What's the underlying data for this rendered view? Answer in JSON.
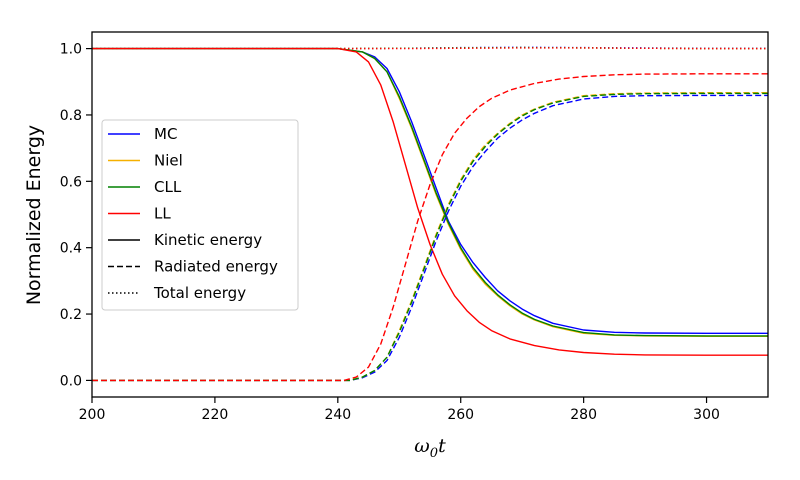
{
  "chart_data": {
    "type": "line",
    "title": "",
    "xlabel_symbol": "ω",
    "xlabel_subscript": "0",
    "xlabel_var": "t",
    "ylabel": "Normalized Energy",
    "xlim": [
      200,
      310
    ],
    "ylim": [
      -0.05,
      1.05
    ],
    "xticks": [
      200,
      220,
      240,
      260,
      280,
      300
    ],
    "yticks": [
      0.0,
      0.2,
      0.4,
      0.6,
      0.8,
      1.0
    ],
    "xtick_labels": [
      "200",
      "220",
      "240",
      "260",
      "280",
      "300"
    ],
    "ytick_labels": [
      "0.0",
      "0.2",
      "0.4",
      "0.6",
      "0.8",
      "1.0"
    ],
    "legend_position": "center-left",
    "grid": false,
    "models": [
      {
        "name": "MC",
        "color": "#0000ff"
      },
      {
        "name": "Niel",
        "color": "#f5b000"
      },
      {
        "name": "CLL",
        "color": "#008000"
      },
      {
        "name": "LL",
        "color": "#ff0000"
      }
    ],
    "line_styles": [
      {
        "name": "Kinetic energy",
        "dash": "solid"
      },
      {
        "name": "Radiated energy",
        "dash": "dashed"
      },
      {
        "name": "Total energy",
        "dash": "dotted"
      }
    ],
    "series": [
      {
        "model": "MC",
        "quantity": "Kinetic energy",
        "x": [
          200,
          240,
          244,
          246,
          248,
          250,
          252,
          254,
          256,
          258,
          260,
          262,
          264,
          266,
          268,
          270,
          272,
          275,
          280,
          285,
          290,
          300,
          310
        ],
        "y": [
          1.0,
          1.0,
          0.99,
          0.975,
          0.94,
          0.87,
          0.78,
          0.68,
          0.58,
          0.48,
          0.41,
          0.355,
          0.31,
          0.27,
          0.24,
          0.215,
          0.195,
          0.172,
          0.152,
          0.145,
          0.143,
          0.142,
          0.142
        ]
      },
      {
        "model": "Niel",
        "quantity": "Kinetic energy",
        "x": [
          200,
          240,
          244,
          246,
          248,
          250,
          252,
          254,
          256,
          258,
          260,
          262,
          264,
          266,
          268,
          270,
          272,
          275,
          280,
          285,
          290,
          300,
          310
        ],
        "y": [
          1.0,
          1.0,
          0.99,
          0.97,
          0.93,
          0.85,
          0.76,
          0.66,
          0.56,
          0.47,
          0.395,
          0.335,
          0.29,
          0.255,
          0.225,
          0.2,
          0.182,
          0.162,
          0.142,
          0.136,
          0.134,
          0.133,
          0.133
        ]
      },
      {
        "model": "CLL",
        "quantity": "Kinetic energy",
        "x": [
          200,
          240,
          244,
          246,
          248,
          250,
          252,
          254,
          256,
          258,
          260,
          262,
          264,
          266,
          268,
          270,
          272,
          275,
          280,
          285,
          290,
          300,
          310
        ],
        "y": [
          1.0,
          1.0,
          0.99,
          0.97,
          0.93,
          0.855,
          0.765,
          0.665,
          0.565,
          0.475,
          0.4,
          0.34,
          0.295,
          0.258,
          0.228,
          0.203,
          0.184,
          0.164,
          0.144,
          0.137,
          0.135,
          0.134,
          0.134
        ]
      },
      {
        "model": "LL",
        "quantity": "Kinetic energy",
        "x": [
          200,
          240,
          243,
          245,
          247,
          249,
          251,
          253,
          255,
          257,
          259,
          261,
          263,
          265,
          268,
          272,
          276,
          280,
          285,
          290,
          300,
          310
        ],
        "y": [
          1.0,
          1.0,
          0.99,
          0.96,
          0.89,
          0.78,
          0.65,
          0.52,
          0.41,
          0.32,
          0.255,
          0.21,
          0.175,
          0.15,
          0.125,
          0.105,
          0.092,
          0.084,
          0.079,
          0.077,
          0.076,
          0.076
        ]
      },
      {
        "model": "MC",
        "quantity": "Radiated energy",
        "x": [
          200,
          242,
          244,
          246,
          248,
          250,
          252,
          254,
          256,
          258,
          260,
          262,
          264,
          266,
          268,
          270,
          272,
          275,
          280,
          285,
          290,
          300,
          310
        ],
        "y": [
          0.0,
          0.0,
          0.008,
          0.025,
          0.06,
          0.13,
          0.22,
          0.32,
          0.42,
          0.51,
          0.585,
          0.645,
          0.69,
          0.73,
          0.76,
          0.785,
          0.805,
          0.828,
          0.848,
          0.856,
          0.858,
          0.859,
          0.859
        ]
      },
      {
        "model": "Niel",
        "quantity": "Radiated energy",
        "x": [
          200,
          242,
          244,
          246,
          248,
          250,
          252,
          254,
          256,
          258,
          260,
          262,
          264,
          266,
          268,
          270,
          272,
          275,
          280,
          285,
          290,
          300,
          310
        ],
        "y": [
          0.0,
          0.0,
          0.01,
          0.03,
          0.07,
          0.15,
          0.24,
          0.34,
          0.44,
          0.53,
          0.605,
          0.665,
          0.71,
          0.745,
          0.775,
          0.8,
          0.818,
          0.838,
          0.858,
          0.864,
          0.866,
          0.867,
          0.867
        ]
      },
      {
        "model": "CLL",
        "quantity": "Radiated energy",
        "x": [
          200,
          242,
          244,
          246,
          248,
          250,
          252,
          254,
          256,
          258,
          260,
          262,
          264,
          266,
          268,
          270,
          272,
          275,
          280,
          285,
          290,
          300,
          310
        ],
        "y": [
          0.0,
          0.0,
          0.01,
          0.03,
          0.07,
          0.145,
          0.235,
          0.335,
          0.435,
          0.525,
          0.6,
          0.66,
          0.705,
          0.742,
          0.772,
          0.797,
          0.816,
          0.836,
          0.856,
          0.862,
          0.864,
          0.865,
          0.865
        ]
      },
      {
        "model": "LL",
        "quantity": "Radiated energy",
        "x": [
          200,
          241,
          243,
          245,
          247,
          249,
          251,
          253,
          255,
          257,
          259,
          261,
          263,
          265,
          268,
          272,
          276,
          280,
          285,
          290,
          300,
          310
        ],
        "y": [
          0.0,
          0.0,
          0.01,
          0.04,
          0.11,
          0.22,
          0.35,
          0.48,
          0.59,
          0.68,
          0.745,
          0.79,
          0.825,
          0.85,
          0.875,
          0.895,
          0.908,
          0.916,
          0.921,
          0.923,
          0.924,
          0.924
        ]
      },
      {
        "model": "MC",
        "quantity": "Total energy",
        "x": [
          200,
          240,
          250,
          260,
          270,
          280,
          290,
          300,
          310
        ],
        "y": [
          1.0,
          1.0,
          1.001,
          1.003,
          1.004,
          1.003,
          1.002,
          1.001,
          1.001
        ]
      },
      {
        "model": "Niel",
        "quantity": "Total energy",
        "x": [
          200,
          240,
          250,
          260,
          270,
          280,
          290,
          300,
          310
        ],
        "y": [
          1.0,
          1.0,
          1.001,
          1.002,
          1.003,
          1.002,
          1.001,
          1.0,
          1.0
        ]
      },
      {
        "model": "CLL",
        "quantity": "Total energy",
        "x": [
          200,
          240,
          250,
          260,
          270,
          280,
          290,
          300,
          310
        ],
        "y": [
          1.0,
          1.0,
          1.001,
          1.002,
          1.003,
          1.002,
          1.001,
          1.0,
          1.0
        ]
      },
      {
        "model": "LL",
        "quantity": "Total energy",
        "x": [
          200,
          240,
          250,
          260,
          270,
          280,
          290,
          300,
          310
        ],
        "y": [
          1.0,
          1.0,
          1.0,
          1.001,
          1.002,
          1.002,
          1.001,
          1.0,
          1.0
        ]
      }
    ]
  }
}
